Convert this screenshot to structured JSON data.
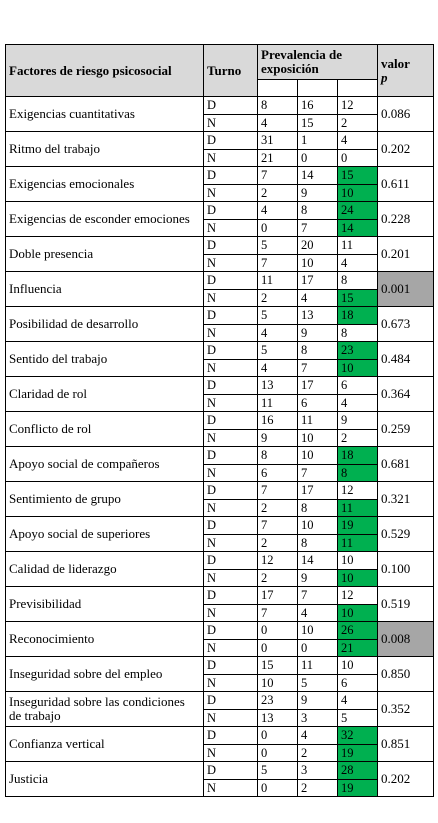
{
  "header": {
    "factor": "Factores de riesgo psicosocial",
    "turno": "Turno",
    "prevalencia": "Prevalencia de exposición",
    "valor": "valor",
    "p": "p"
  },
  "subheader_highlight": [
    false,
    false,
    true
  ],
  "rows": [
    {
      "factor": "Exigencias cuantitativas",
      "p_value": "0.086",
      "p_highlight": false,
      "sub": [
        {
          "turno": "D",
          "values": [
            8,
            16,
            12
          ],
          "highlight": [
            false,
            false,
            false
          ]
        },
        {
          "turno": "N",
          "values": [
            4,
            15,
            2
          ],
          "highlight": [
            false,
            false,
            false
          ]
        }
      ]
    },
    {
      "factor": "Ritmo del trabajo",
      "p_value": "0.202",
      "p_highlight": false,
      "sub": [
        {
          "turno": "D",
          "values": [
            31,
            1,
            4
          ],
          "highlight": [
            false,
            false,
            false
          ]
        },
        {
          "turno": "N",
          "values": [
            21,
            0,
            0
          ],
          "highlight": [
            false,
            false,
            false
          ]
        }
      ]
    },
    {
      "factor": "Exigencias emocionales",
      "p_value": "0.611",
      "p_highlight": false,
      "sub": [
        {
          "turno": "D",
          "values": [
            7,
            14,
            15
          ],
          "highlight": [
            false,
            false,
            true
          ]
        },
        {
          "turno": "N",
          "values": [
            2,
            9,
            10
          ],
          "highlight": [
            false,
            false,
            true
          ]
        }
      ]
    },
    {
      "factor": "Exigencias de esconder emociones",
      "p_value": "0.228",
      "p_highlight": false,
      "sub": [
        {
          "turno": "D",
          "values": [
            4,
            8,
            24
          ],
          "highlight": [
            false,
            false,
            true
          ]
        },
        {
          "turno": "N",
          "values": [
            0,
            7,
            14
          ],
          "highlight": [
            false,
            false,
            true
          ]
        }
      ]
    },
    {
      "factor": "Doble presencia",
      "p_value": "0.201",
      "p_highlight": false,
      "sub": [
        {
          "turno": "D",
          "values": [
            5,
            20,
            11
          ],
          "highlight": [
            false,
            false,
            false
          ]
        },
        {
          "turno": "N",
          "values": [
            7,
            10,
            4
          ],
          "highlight": [
            false,
            false,
            false
          ]
        }
      ]
    },
    {
      "factor": "Influencia",
      "p_value": "0.001",
      "p_highlight": true,
      "sub": [
        {
          "turno": "D",
          "values": [
            11,
            17,
            8
          ],
          "highlight": [
            false,
            false,
            false
          ]
        },
        {
          "turno": "N",
          "values": [
            2,
            4,
            15
          ],
          "highlight": [
            false,
            false,
            true
          ]
        }
      ]
    },
    {
      "factor": "Posibilidad de desarrollo",
      "p_value": "0.673",
      "p_highlight": false,
      "sub": [
        {
          "turno": "D",
          "values": [
            5,
            13,
            18
          ],
          "highlight": [
            false,
            false,
            true
          ]
        },
        {
          "turno": "N",
          "values": [
            4,
            9,
            8
          ],
          "highlight": [
            false,
            false,
            false
          ]
        }
      ]
    },
    {
      "factor": "Sentido del trabajo",
      "p_value": "0.484",
      "p_highlight": false,
      "sub": [
        {
          "turno": "D",
          "values": [
            5,
            8,
            23
          ],
          "highlight": [
            false,
            false,
            true
          ]
        },
        {
          "turno": "N",
          "values": [
            4,
            7,
            10
          ],
          "highlight": [
            false,
            false,
            true
          ]
        }
      ]
    },
    {
      "factor": "Claridad de rol",
      "p_value": "0.364",
      "p_highlight": false,
      "sub": [
        {
          "turno": "D",
          "values": [
            13,
            17,
            6
          ],
          "highlight": [
            false,
            false,
            false
          ]
        },
        {
          "turno": "N",
          "values": [
            11,
            6,
            4
          ],
          "highlight": [
            false,
            false,
            false
          ]
        }
      ]
    },
    {
      "factor": "Conflicto de rol",
      "p_value": "0.259",
      "p_highlight": false,
      "sub": [
        {
          "turno": "D",
          "values": [
            16,
            11,
            9
          ],
          "highlight": [
            false,
            false,
            false
          ]
        },
        {
          "turno": "N",
          "values": [
            9,
            10,
            2
          ],
          "highlight": [
            false,
            false,
            false
          ]
        }
      ]
    },
    {
      "factor": "Apoyo social de compañeros",
      "p_value": "0.681",
      "p_highlight": false,
      "sub": [
        {
          "turno": "D",
          "values": [
            8,
            10,
            18
          ],
          "highlight": [
            false,
            false,
            true
          ]
        },
        {
          "turno": "N",
          "values": [
            6,
            7,
            8
          ],
          "highlight": [
            false,
            false,
            true
          ]
        }
      ]
    },
    {
      "factor": "Sentimiento de grupo",
      "p_value": "0.321",
      "p_highlight": false,
      "sub": [
        {
          "turno": "D",
          "values": [
            7,
            17,
            12
          ],
          "highlight": [
            false,
            false,
            false
          ]
        },
        {
          "turno": "N",
          "values": [
            2,
            8,
            11
          ],
          "highlight": [
            false,
            false,
            true
          ]
        }
      ]
    },
    {
      "factor": "Apoyo social de superiores",
      "p_value": "0.529",
      "p_highlight": false,
      "sub": [
        {
          "turno": "D",
          "values": [
            7,
            10,
            19
          ],
          "highlight": [
            false,
            false,
            true
          ]
        },
        {
          "turno": "N",
          "values": [
            2,
            8,
            11
          ],
          "highlight": [
            false,
            false,
            true
          ]
        }
      ]
    },
    {
      "factor": "Calidad de liderazgo",
      "p_value": "0.100",
      "p_highlight": false,
      "sub": [
        {
          "turno": "D",
          "values": [
            12,
            14,
            10
          ],
          "highlight": [
            false,
            false,
            false
          ]
        },
        {
          "turno": "N",
          "values": [
            2,
            9,
            10
          ],
          "highlight": [
            false,
            false,
            true
          ]
        }
      ]
    },
    {
      "factor": "Previsibilidad",
      "p_value": "0.519",
      "p_highlight": false,
      "sub": [
        {
          "turno": "D",
          "values": [
            17,
            7,
            12
          ],
          "highlight": [
            false,
            false,
            false
          ]
        },
        {
          "turno": "N",
          "values": [
            7,
            4,
            10
          ],
          "highlight": [
            false,
            false,
            true
          ]
        }
      ]
    },
    {
      "factor": "Reconocimiento",
      "p_value": "0.008",
      "p_highlight": true,
      "sub": [
        {
          "turno": "D",
          "values": [
            0,
            10,
            26
          ],
          "highlight": [
            false,
            false,
            true
          ]
        },
        {
          "turno": "N",
          "values": [
            0,
            0,
            21
          ],
          "highlight": [
            false,
            false,
            true
          ]
        }
      ]
    },
    {
      "factor": "Inseguridad sobre del empleo",
      "p_value": "0.850",
      "p_highlight": false,
      "sub": [
        {
          "turno": "D",
          "values": [
            15,
            11,
            10
          ],
          "highlight": [
            false,
            false,
            false
          ]
        },
        {
          "turno": "N",
          "values": [
            10,
            5,
            6
          ],
          "highlight": [
            false,
            false,
            false
          ]
        }
      ]
    },
    {
      "factor": "Inseguridad sobre las condiciones de trabajo",
      "p_value": "0.352",
      "p_highlight": false,
      "sub": [
        {
          "turno": "D",
          "values": [
            23,
            9,
            4
          ],
          "highlight": [
            false,
            false,
            false
          ]
        },
        {
          "turno": "N",
          "values": [
            13,
            3,
            5
          ],
          "highlight": [
            false,
            false,
            false
          ]
        }
      ]
    },
    {
      "factor": "Confianza vertical",
      "p_value": "0.851",
      "p_highlight": false,
      "sub": [
        {
          "turno": "D",
          "values": [
            0,
            4,
            32
          ],
          "highlight": [
            false,
            false,
            true
          ]
        },
        {
          "turno": "N",
          "values": [
            0,
            2,
            19
          ],
          "highlight": [
            false,
            false,
            true
          ]
        }
      ]
    },
    {
      "factor": "Justicia",
      "p_value": "0.202",
      "p_highlight": false,
      "sub": [
        {
          "turno": "D",
          "values": [
            5,
            3,
            28
          ],
          "highlight": [
            false,
            false,
            true
          ]
        },
        {
          "turno": "N",
          "values": [
            0,
            2,
            19
          ],
          "highlight": [
            false,
            false,
            true
          ]
        }
      ]
    }
  ]
}
